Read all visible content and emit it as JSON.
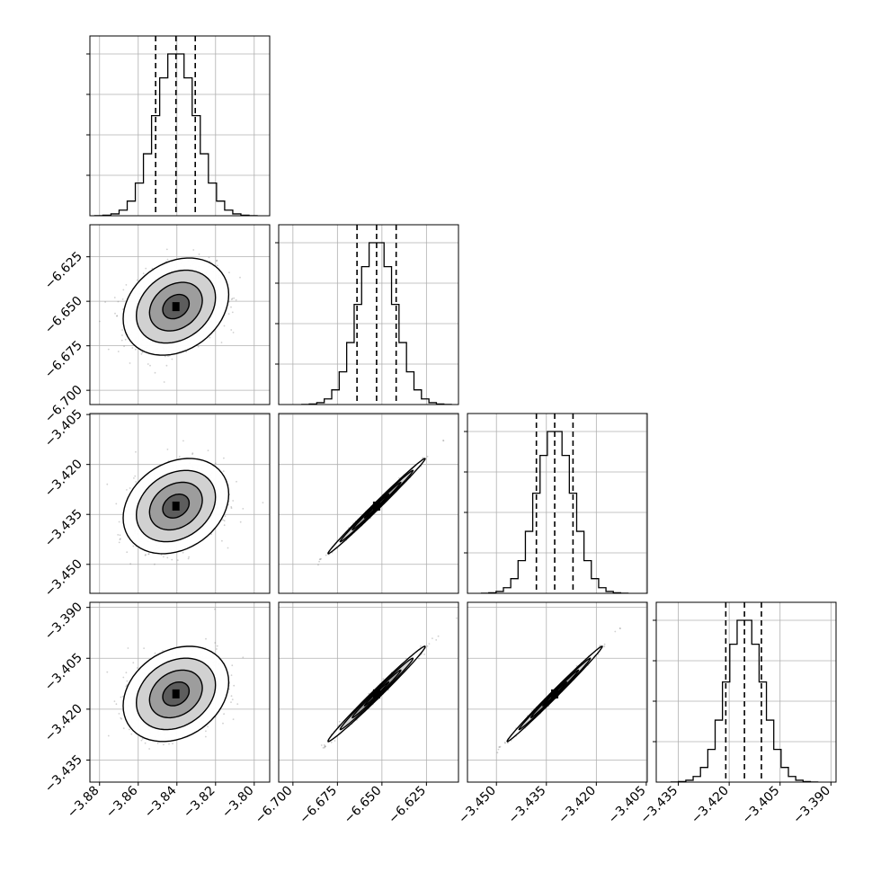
{
  "chart_data": {
    "type": "scatter",
    "title": "",
    "params": [
      {
        "mean": -3.8405,
        "std": 0.0105,
        "quantiles": [
          -3.851,
          -3.8405,
          -3.8305
        ],
        "range": [
          -3.885,
          -3.792
        ],
        "ticks": [
          -3.88,
          -3.86,
          -3.84,
          -3.82,
          -3.8
        ],
        "tick_labels": [
          "−3.88",
          "−3.86",
          "−3.84",
          "−3.82",
          "−3.80"
        ]
      },
      {
        "mean": -6.653,
        "std": 0.0105,
        "quantiles": [
          -6.664,
          -6.653,
          -6.642
        ],
        "range": [
          -6.708,
          -6.607
        ],
        "ticks": [
          -6.7,
          -6.675,
          -6.65,
          -6.625
        ],
        "tick_labels": [
          "−6.700",
          "−6.675",
          "−6.650",
          "−6.625"
        ]
      },
      {
        "mean": -3.4325,
        "std": 0.0055,
        "quantiles": [
          -3.438,
          -3.4325,
          -3.427
        ],
        "range": [
          -3.4587,
          -3.4047
        ],
        "ticks": [
          -3.45,
          -3.435,
          -3.42,
          -3.405
        ],
        "tick_labels": [
          "−3.450",
          "−3.435",
          "−3.420",
          "−3.405"
        ]
      },
      {
        "mean": -3.4155,
        "std": 0.0054,
        "quantiles": [
          -3.421,
          -3.4155,
          -3.4105
        ],
        "range": [
          -3.4415,
          -3.3885
        ],
        "ticks": [
          -3.435,
          -3.42,
          -3.405,
          -3.39
        ],
        "tick_labels": [
          "−3.435",
          "−3.420",
          "−3.405",
          "−3.390"
        ]
      }
    ],
    "correlations": [
      [
        1,
        0.25,
        0.25,
        0.25
      ],
      [
        0.25,
        1,
        0.995,
        0.992
      ],
      [
        0.25,
        0.995,
        1,
        0.995
      ],
      [
        0.25,
        0.992,
        0.995,
        1
      ]
    ],
    "histogram_bins": 20,
    "contour_levels": [
      0.5,
      1.0,
      1.5,
      2.0
    ],
    "grid": true
  }
}
